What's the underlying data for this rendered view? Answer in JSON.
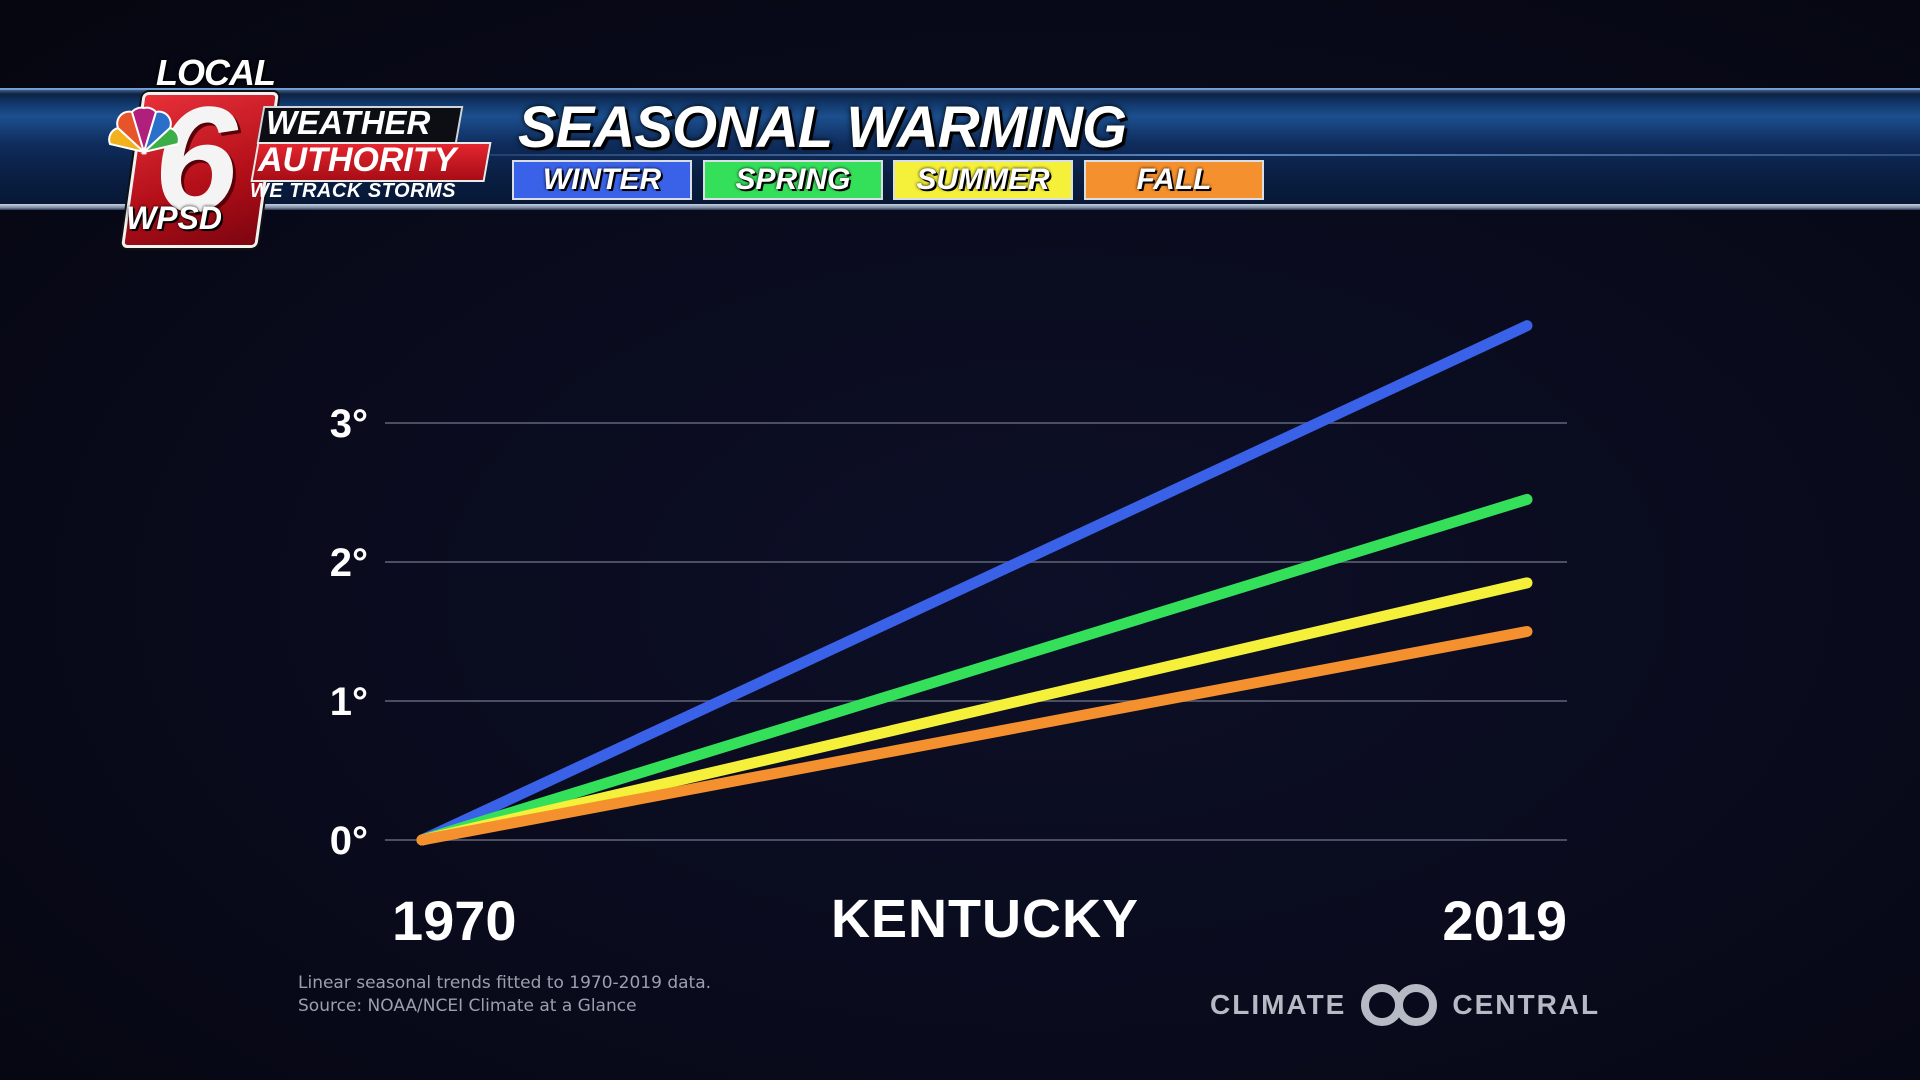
{
  "logo": {
    "local": "LOCAL",
    "six": "6",
    "station": "WPSD",
    "weather": "WEATHER",
    "authority": "AUTHORITY",
    "tagline": "WE TRACK STORMS"
  },
  "header": {
    "title": "SEASONAL WARMING",
    "seasons": [
      {
        "label": "WINTER",
        "color": "#3a62e8"
      },
      {
        "label": "SPRING",
        "color": "#34e05a"
      },
      {
        "label": "SUMMER",
        "color": "#f5f03a"
      },
      {
        "label": "FALL",
        "color": "#f5902e"
      }
    ]
  },
  "chart_data": {
    "type": "line",
    "title": "SEASONAL WARMING",
    "location": "KENTUCKY",
    "x": [
      1970,
      2019
    ],
    "x_tick_labels": [
      "1970",
      "2019"
    ],
    "y_tick_labels": [
      "0°",
      "1°",
      "2°",
      "3°"
    ],
    "y_ticks": [
      0,
      1,
      2,
      3
    ],
    "ylim": [
      0,
      3
    ],
    "grid": true,
    "series": [
      {
        "name": "WINTER",
        "color": "#3a62e8",
        "values": [
          0,
          3.7
        ]
      },
      {
        "name": "SPRING",
        "color": "#34e05a",
        "values": [
          0,
          2.45
        ]
      },
      {
        "name": "SUMMER",
        "color": "#f5f03a",
        "values": [
          0,
          1.85
        ]
      },
      {
        "name": "FALL",
        "color": "#f5902e",
        "values": [
          0,
          1.5
        ]
      }
    ]
  },
  "footnote": {
    "line1": "Linear seasonal trends fitted to 1970-2019 data.",
    "line2": "Source: NOAA/NCEI Climate at a Glance"
  },
  "credit": {
    "left": "CLIMATE",
    "right": "CENTRAL"
  }
}
